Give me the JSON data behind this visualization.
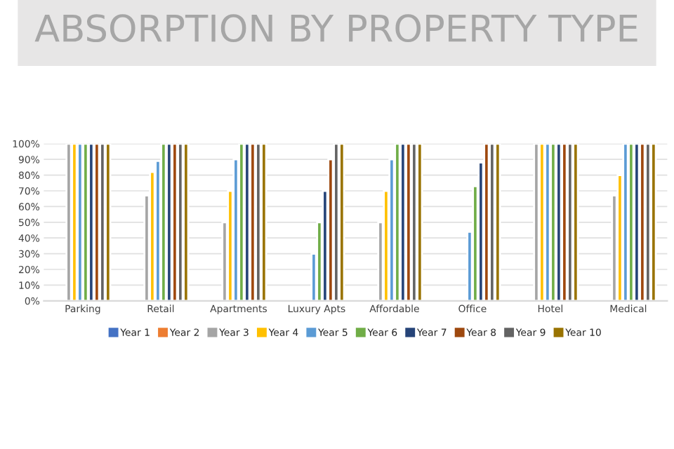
{
  "chart_data": {
    "type": "bar",
    "title": "ABSORPTION BY PROPERTY TYPE",
    "categories": [
      "Parking",
      "Retail",
      "Apartments",
      "Luxury Apts",
      "Affordable",
      "Office",
      "Hotel",
      "Medical"
    ],
    "series": [
      {
        "name": "Year 1",
        "color": "#4472c4",
        "values": [
          null,
          null,
          null,
          null,
          null,
          null,
          null,
          null
        ]
      },
      {
        "name": "Year 2",
        "color": "#ed7d31",
        "values": [
          null,
          null,
          null,
          null,
          null,
          null,
          null,
          null
        ]
      },
      {
        "name": "Year 3",
        "color": "#a5a5a5",
        "values": [
          100,
          67,
          50,
          null,
          50,
          null,
          100,
          67
        ]
      },
      {
        "name": "Year 4",
        "color": "#ffc000",
        "values": [
          100,
          82,
          70,
          null,
          70,
          null,
          100,
          80
        ]
      },
      {
        "name": "Year 5",
        "color": "#5b9bd5",
        "values": [
          100,
          89,
          90,
          30,
          90,
          44,
          100,
          100
        ]
      },
      {
        "name": "Year 6",
        "color": "#70ad47",
        "values": [
          100,
          100,
          100,
          50,
          100,
          73,
          100,
          100
        ]
      },
      {
        "name": "Year 7",
        "color": "#264478",
        "values": [
          100,
          100,
          100,
          70,
          100,
          88,
          100,
          100
        ]
      },
      {
        "name": "Year 8",
        "color": "#9e480e",
        "values": [
          100,
          100,
          100,
          90,
          100,
          100,
          100,
          100
        ]
      },
      {
        "name": "Year 9",
        "color": "#636363",
        "values": [
          100,
          100,
          100,
          100,
          100,
          100,
          100,
          100
        ]
      },
      {
        "name": "Year 10",
        "color": "#997300",
        "values": [
          100,
          100,
          100,
          100,
          100,
          100,
          100,
          100
        ]
      }
    ],
    "ylim": [
      0,
      100
    ],
    "yticks": [
      {
        "value": 0,
        "label": "0%"
      },
      {
        "value": 10,
        "label": "10%"
      },
      {
        "value": 20,
        "label": "20%"
      },
      {
        "value": 30,
        "label": "30%"
      },
      {
        "value": 40,
        "label": "40%"
      },
      {
        "value": 50,
        "label": "50%"
      },
      {
        "value": 60,
        "label": "60%"
      },
      {
        "value": 70,
        "label": "70%"
      },
      {
        "value": 80,
        "label": "80%"
      },
      {
        "value": 90,
        "label": "90%"
      },
      {
        "value": 100,
        "label": "100%"
      }
    ],
    "grid": "y",
    "legend": "bottom"
  }
}
